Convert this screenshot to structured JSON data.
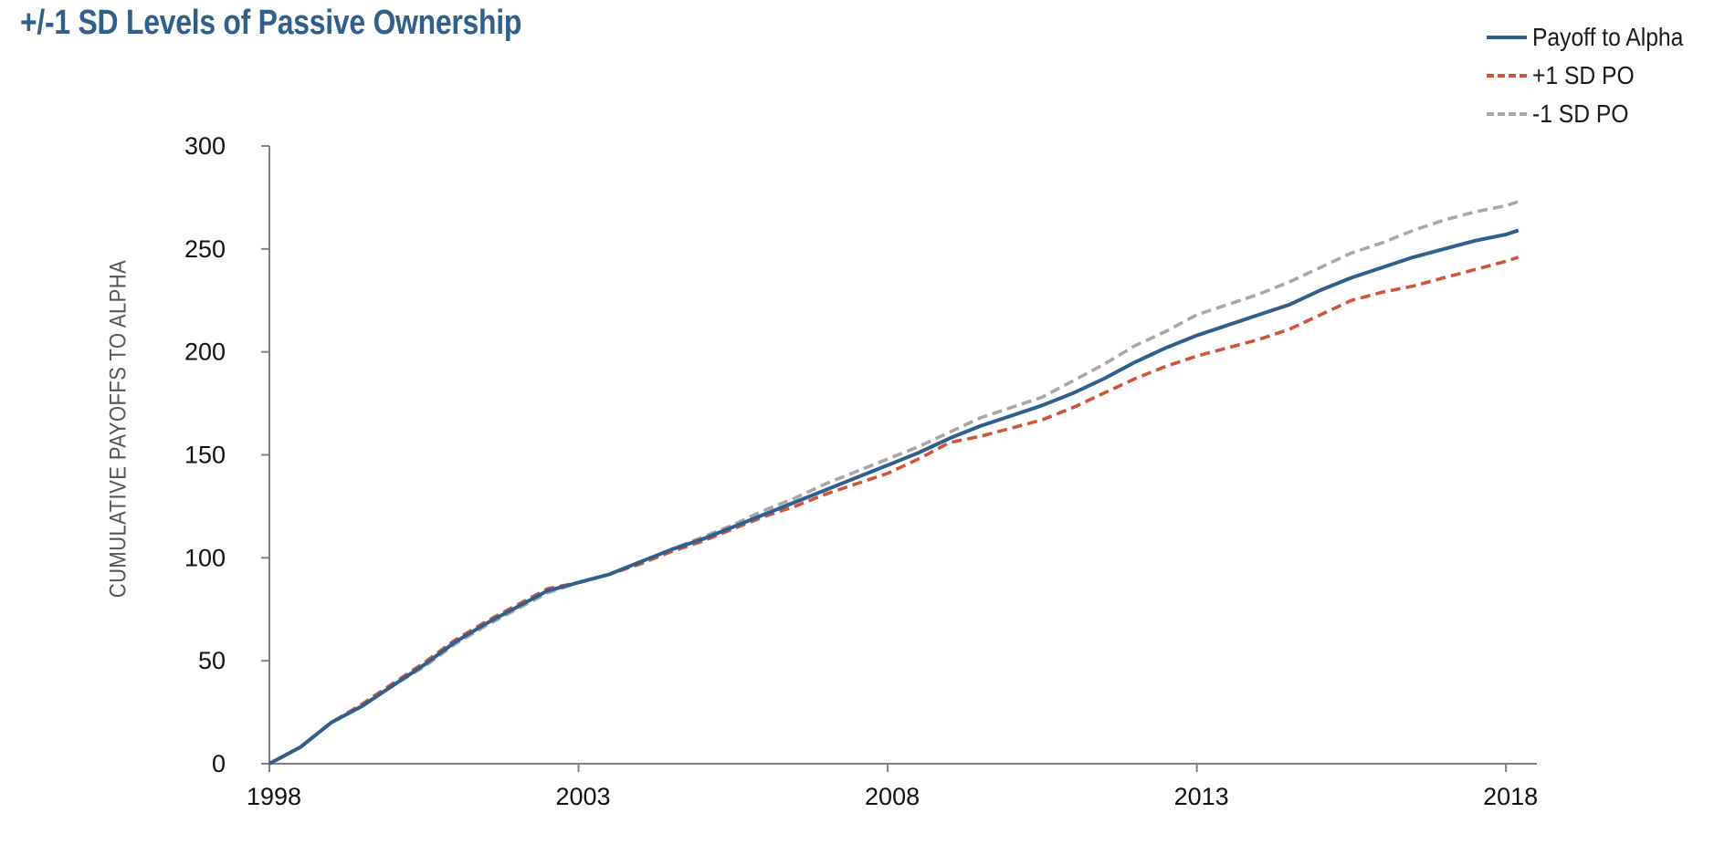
{
  "chart_data": {
    "type": "line",
    "title": "+/-1 SD Levels of Passive Ownership",
    "xlabel": "",
    "ylabel": "CUMULATIVE PAYOFFS TO ALPHA",
    "xlim": [
      1998,
      2018.2
    ],
    "ylim": [
      0,
      300
    ],
    "x_ticks": [
      "1998",
      "2003",
      "2008",
      "2013",
      "2018"
    ],
    "y_ticks": [
      "0",
      "50",
      "100",
      "150",
      "200",
      "250",
      "300"
    ],
    "grid": false,
    "legend_position": "top-right",
    "x": [
      1998,
      1998.5,
      1999,
      1999.5,
      2000,
      2000.5,
      2001,
      2001.5,
      2002,
      2002.5,
      2003,
      2003.5,
      2004,
      2004.5,
      2005,
      2005.5,
      2006,
      2006.5,
      2007,
      2007.5,
      2008,
      2008.5,
      2009,
      2009.5,
      2010,
      2010.5,
      2011,
      2011.5,
      2012,
      2012.5,
      2013,
      2013.5,
      2014,
      2014.5,
      2015,
      2015.5,
      2016,
      2016.5,
      2017,
      2017.5,
      2018,
      2018.2
    ],
    "series": [
      {
        "name": "Payoff to Alpha",
        "color": "#2f5f8a",
        "style": "solid",
        "values": [
          0,
          8,
          20,
          28,
          38,
          48,
          59,
          68,
          76,
          84,
          88,
          92,
          98,
          104,
          109,
          115,
          121,
          127,
          133,
          139,
          145,
          151,
          158,
          164,
          169,
          174,
          180,
          187,
          195,
          202,
          208,
          213,
          218,
          223,
          230,
          236,
          241,
          246,
          250,
          254,
          257,
          259
        ]
      },
      {
        "name": "+1 SD PO",
        "color": "#d0563a",
        "style": "dashed",
        "values": [
          0,
          8,
          20,
          29,
          39,
          49,
          60,
          69,
          77,
          85,
          88,
          92,
          97,
          103,
          108,
          114,
          120,
          125,
          131,
          136,
          141,
          148,
          156,
          159,
          163,
          167,
          173,
          180,
          187,
          193,
          198,
          202,
          206,
          211,
          218,
          225,
          229,
          232,
          236,
          240,
          244,
          246
        ]
      },
      {
        "name": "-1 SD PO",
        "color": "#a6a6a6",
        "style": "dashed",
        "values": [
          0,
          8,
          20,
          28,
          38,
          47,
          58,
          67,
          75,
          83,
          88,
          92,
          98,
          104,
          110,
          116,
          123,
          129,
          136,
          142,
          148,
          154,
          161,
          168,
          173,
          178,
          186,
          194,
          203,
          210,
          218,
          223,
          228,
          234,
          241,
          248,
          253,
          259,
          264,
          268,
          271,
          273
        ]
      }
    ]
  }
}
